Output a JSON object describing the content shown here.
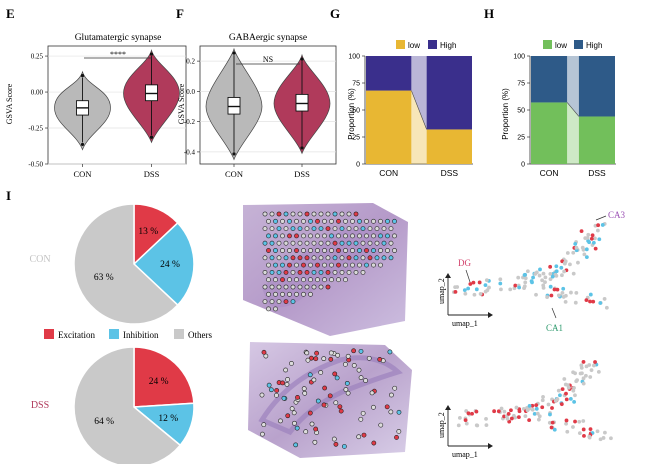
{
  "panels": {
    "E": {
      "label": "E",
      "title": "Glutamatergic synapse",
      "ylabel": "GSVA Score",
      "significance": "****",
      "chart_data": {
        "type": "violin",
        "categories": [
          "CON",
          "DSS"
        ],
        "ylim": [
          -0.5,
          0.32
        ],
        "yticks": [
          "0.25",
          "0.00",
          "-0.25",
          "-0.50"
        ],
        "yticks_values": [
          0.25,
          0.0,
          -0.25,
          -0.5
        ],
        "box": [
          {
            "q1": -0.16,
            "median": -0.11,
            "q3": -0.06,
            "whisker_low": -0.35,
            "whisker_high": 0.1
          },
          {
            "q1": -0.06,
            "median": -0.01,
            "q3": 0.05,
            "whisker_low": -0.3,
            "whisker_high": 0.25
          }
        ],
        "colors": [
          "#b9b9b9",
          "#b03a5b"
        ]
      }
    },
    "F": {
      "label": "F",
      "title": "GABAergic synapse",
      "ylabel": "GSVA Score",
      "significance": "NS",
      "chart_data": {
        "type": "violin",
        "categories": [
          "CON",
          "DSS"
        ],
        "ylim": [
          -0.48,
          0.3
        ],
        "yticks": [
          "0.2",
          "0.0",
          "-0.2",
          "-0.4"
        ],
        "yticks_values": [
          0.2,
          0.0,
          -0.2,
          -0.4
        ],
        "box": [
          {
            "q1": -0.15,
            "median": -0.1,
            "q3": -0.04,
            "whisker_low": -0.4,
            "whisker_high": 0.24
          },
          {
            "q1": -0.13,
            "median": -0.08,
            "q3": -0.02,
            "whisker_low": -0.36,
            "whisker_high": 0.2
          }
        ],
        "colors": [
          "#b9b9b9",
          "#b03a5b"
        ]
      }
    },
    "G": {
      "label": "G",
      "ylabel": "Proportion (%)",
      "legend": [
        "low",
        "High"
      ],
      "chart_data": {
        "type": "bar",
        "stacked": true,
        "categories": [
          "CON",
          "DSS"
        ],
        "series": [
          {
            "name": "low",
            "values": [
              68,
              32
            ],
            "color": "#e8b733"
          },
          {
            "name": "High",
            "values": [
              32,
              68
            ],
            "color": "#3a2f8c"
          }
        ],
        "ylim": [
          0,
          100
        ],
        "yticks": [
          "0",
          "25",
          "50",
          "75",
          "100"
        ]
      }
    },
    "H": {
      "label": "H",
      "ylabel": "Proportion (%)",
      "legend": [
        "low",
        "High"
      ],
      "chart_data": {
        "type": "bar",
        "stacked": true,
        "categories": [
          "CON",
          "DSS"
        ],
        "series": [
          {
            "name": "low",
            "values": [
              57,
              44
            ],
            "color": "#72bf5b"
          },
          {
            "name": "High",
            "values": [
              43,
              56
            ],
            "color": "#2e5a88"
          }
        ],
        "ylim": [
          0,
          100
        ],
        "yticks": [
          "0",
          "25",
          "50",
          "75",
          "100"
        ]
      }
    },
    "I": {
      "label": "I",
      "legend": [
        "Excitation",
        "Inhibition",
        "Others"
      ],
      "colors": [
        "#e03a47",
        "#5cc3e6",
        "#c9c9c9"
      ],
      "pies": [
        {
          "group": "CON",
          "chart_data": {
            "type": "pie",
            "labels": [
              "Excitation",
              "Inhibition",
              "Others"
            ],
            "values": [
              13,
              24,
              63
            ],
            "value_labels": [
              "13 %",
              "24 %",
              "63 %"
            ]
          }
        },
        {
          "group": "DSS",
          "chart_data": {
            "type": "pie",
            "labels": [
              "Excitation",
              "Inhibition",
              "Others"
            ],
            "values": [
              24,
              12,
              64
            ],
            "value_labels": [
              "24 %",
              "12 %",
              "64 %"
            ]
          }
        }
      ],
      "umap": {
        "xlabel": "umap_1",
        "ylabel": "umap_2",
        "annotations": [
          "DG",
          "CA3",
          "CA1"
        ]
      }
    }
  }
}
